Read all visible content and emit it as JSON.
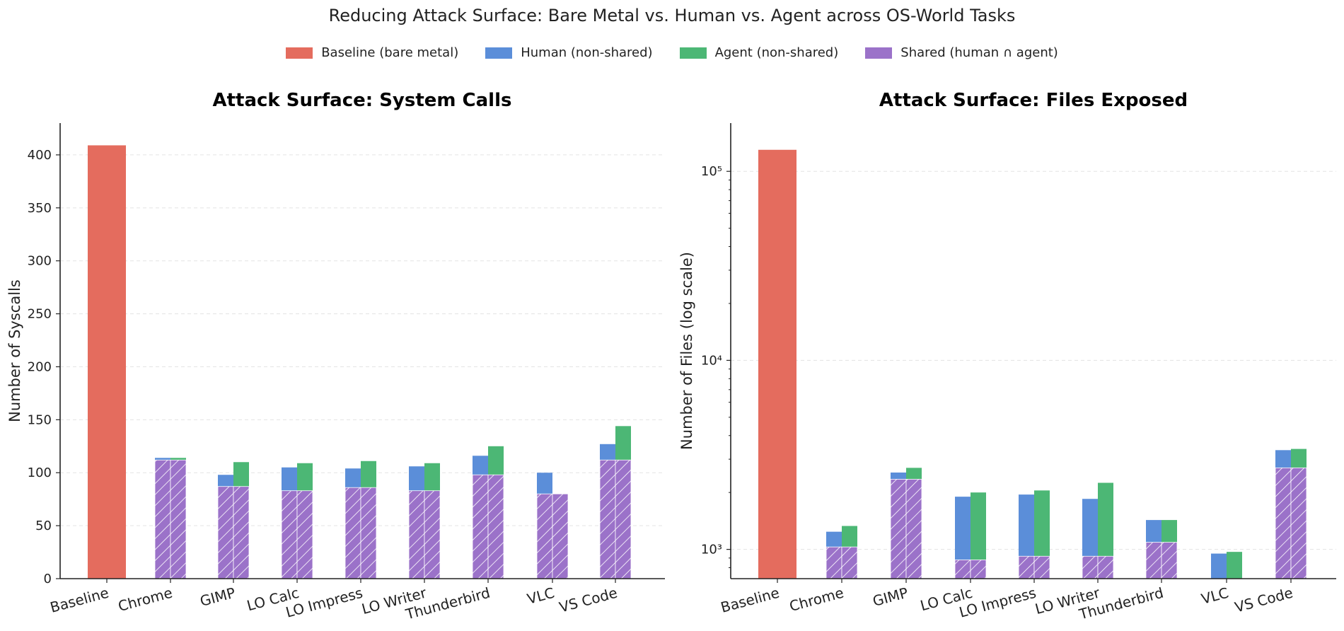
{
  "suptitle": "Reducing Attack Surface: Bare Metal vs. Human vs. Agent across OS-World Tasks",
  "colors": {
    "baseline": "#e46c5e",
    "human": "#5b8ed9",
    "agent": "#4cb775",
    "shared": "#9b72c9"
  },
  "legend": [
    {
      "key": "baseline",
      "label": "Baseline (bare metal)"
    },
    {
      "key": "human",
      "label": "Human (non-shared)"
    },
    {
      "key": "agent",
      "label": "Agent (non-shared)"
    },
    {
      "key": "shared",
      "label": "Shared (human ∩ agent)"
    }
  ],
  "chart_data": [
    {
      "type": "bar",
      "title": "Attack Surface: System Calls",
      "ylabel": "Number of Syscalls",
      "yscale": "linear",
      "ylim": [
        0,
        430
      ],
      "yticks": [
        0,
        50,
        100,
        150,
        200,
        250,
        300,
        350,
        400
      ],
      "grid": "y, dashed",
      "baseline": {
        "label": "Baseline",
        "value": 409
      },
      "categories": [
        "Chrome",
        "GIMP",
        "LO Calc",
        "LO Impress",
        "LO Writer",
        "Thunderbird",
        "VLC",
        "VS Code"
      ],
      "shared": [
        112,
        87,
        83,
        86,
        83,
        98,
        80,
        112
      ],
      "human_total": [
        114,
        98,
        105,
        104,
        106,
        116,
        100,
        127
      ],
      "agent_total": [
        114,
        110,
        109,
        111,
        109,
        125,
        80,
        144
      ]
    },
    {
      "type": "bar",
      "title": "Attack Surface: Files Exposed",
      "ylabel": "Number of Files (log scale)",
      "yscale": "log",
      "ylim": [
        700,
        180000
      ],
      "yticks": [
        1000,
        10000,
        100000
      ],
      "ytick_labels": [
        "10³",
        "10⁴",
        "10⁵"
      ],
      "grid": "y, dashed",
      "baseline": {
        "label": "Baseline",
        "value": 130000
      },
      "categories": [
        "Chrome",
        "GIMP",
        "LO Calc",
        "LO Impress",
        "LO Writer",
        "Thunderbird",
        "VLC",
        "VS Code"
      ],
      "shared": [
        1030,
        2350,
        880,
        920,
        920,
        1090,
        0,
        2700
      ],
      "human_total": [
        1240,
        2550,
        1900,
        1950,
        1850,
        1430,
        950,
        3350
      ],
      "agent_total": [
        1330,
        2700,
        2000,
        2050,
        2250,
        1430,
        970,
        3400
      ]
    }
  ]
}
